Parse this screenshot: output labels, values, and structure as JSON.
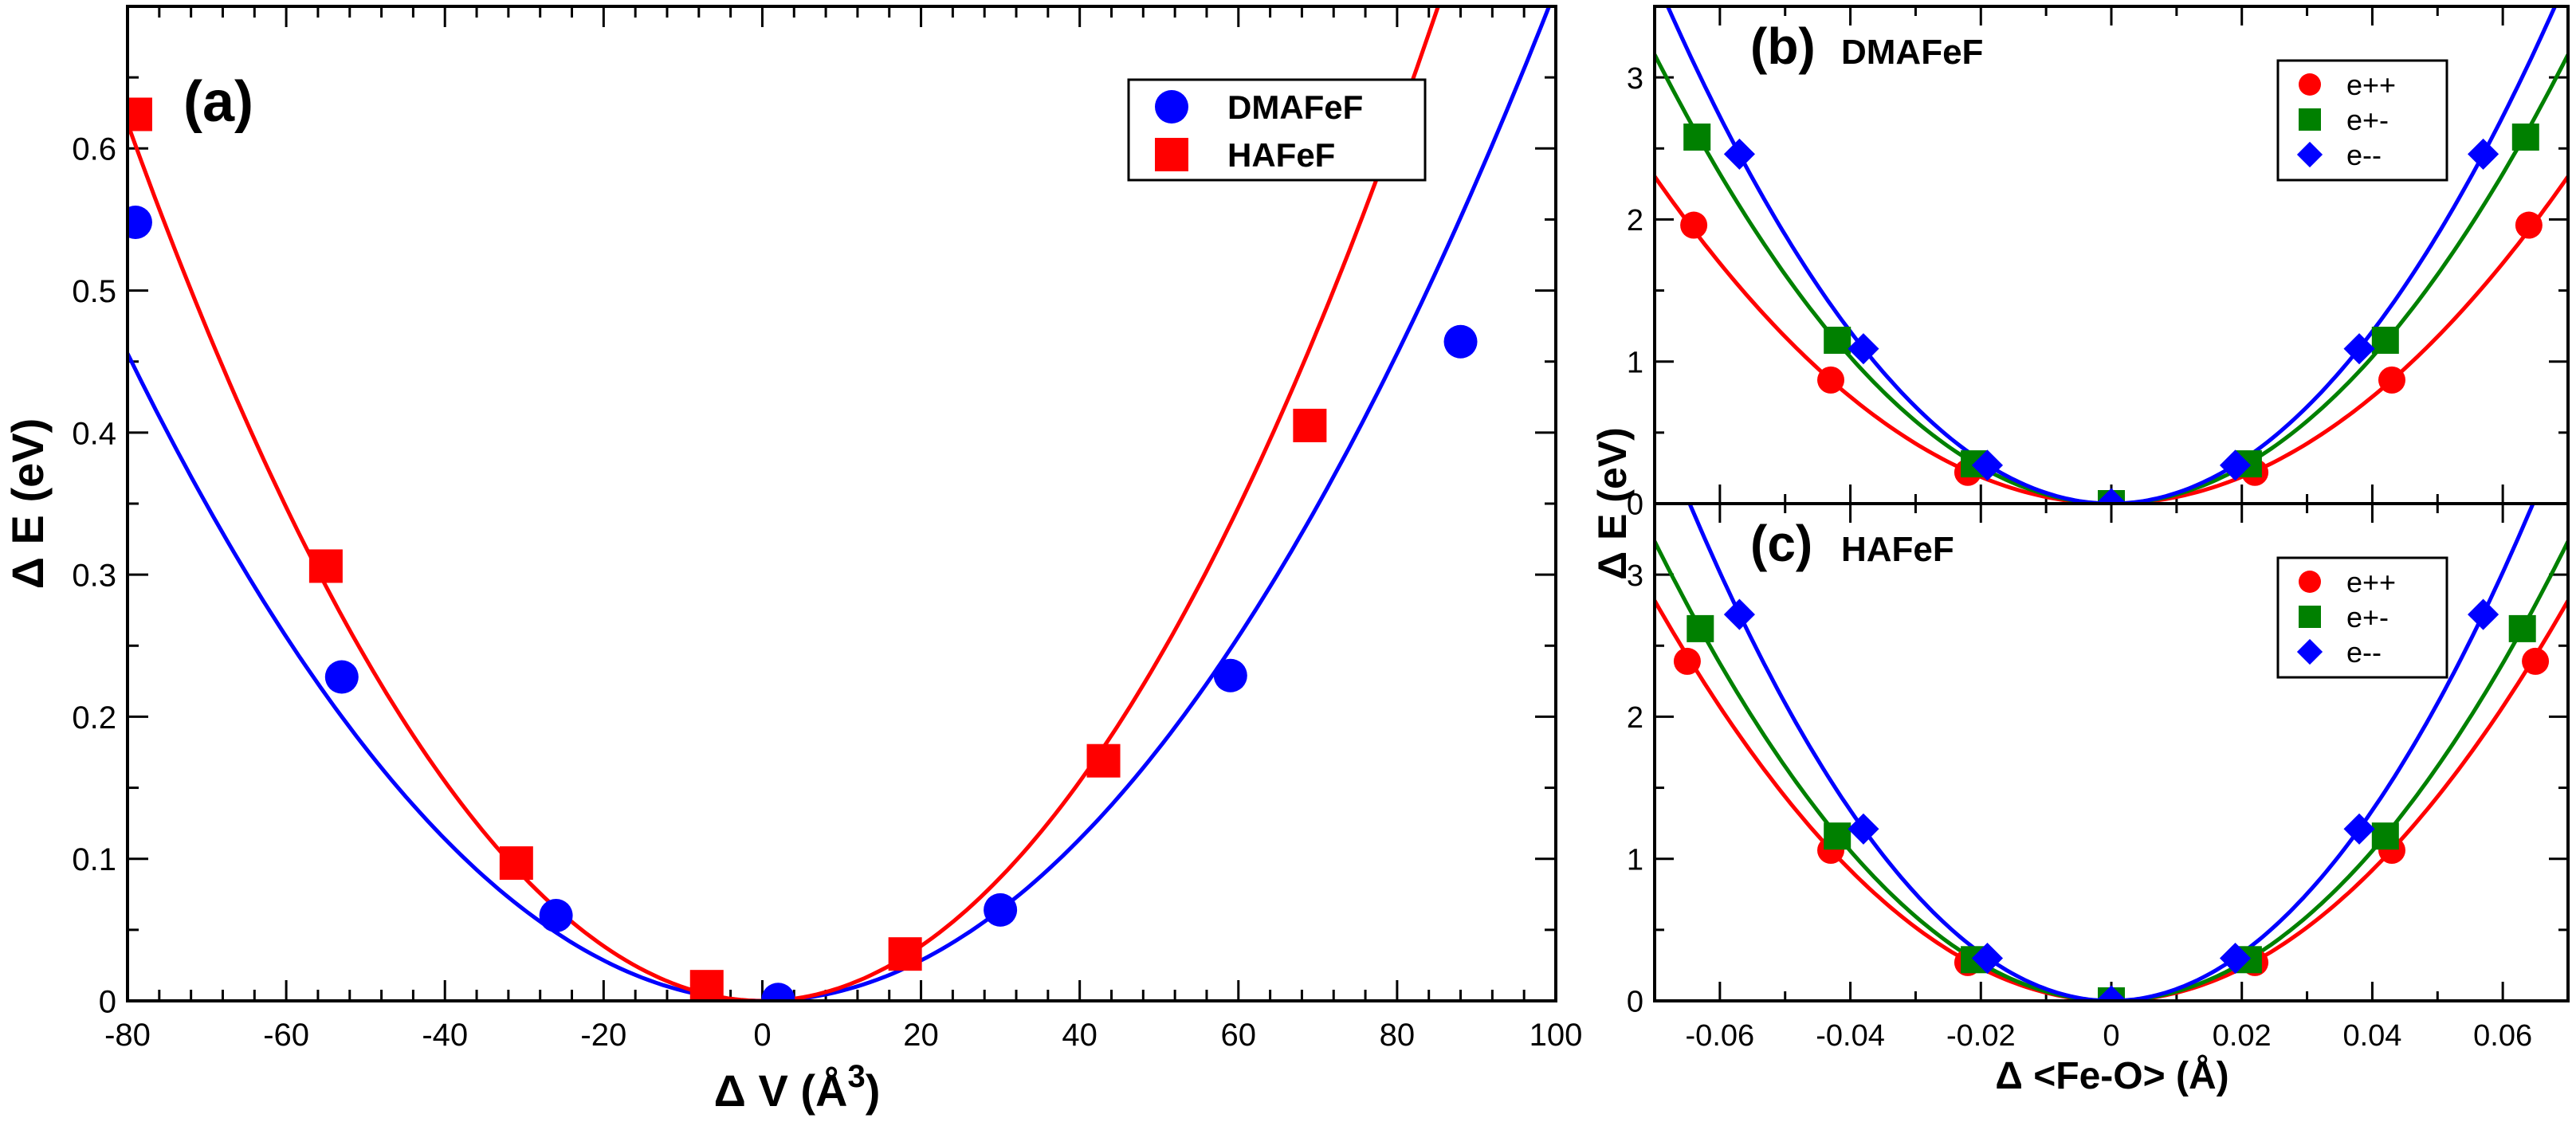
{
  "chart_data": [
    {
      "panel": "(a)",
      "type": "scatter",
      "title": "",
      "xlabel": "Δ V (Å",
      "xlabel_sup": "3",
      "xlabel_close": ")",
      "ylabel": "Δ E (eV)",
      "xlim": [
        -80,
        100
      ],
      "ylim": [
        0,
        0.7
      ],
      "xticks": [
        "-80",
        "-60",
        "-40",
        "-20",
        "0",
        "20",
        "40",
        "60",
        "80",
        "100"
      ],
      "yticks": [
        "0",
        "0.1",
        "0.2",
        "0.3",
        "0.4",
        "0.5",
        "0.6"
      ],
      "legend": "top-right",
      "series": [
        {
          "name": "DMAFeF",
          "color": "#0000ff",
          "marker": "circle",
          "points": [
            [
              -79,
              0.548
            ],
            [
              -53,
              0.228
            ],
            [
              -26,
              0.06
            ],
            [
              2,
              0.001
            ],
            [
              30,
              0.064
            ],
            [
              59,
              0.229
            ],
            [
              88,
              0.464
            ]
          ],
          "fit": [
            7.12e-05,
            0.0
          ],
          "fit_range": [
            -80,
            100
          ]
        },
        {
          "name": "HAFeF",
          "color": "#ff0000",
          "marker": "square",
          "points": [
            [
              -79,
              0.624
            ],
            [
              -55,
              0.306
            ],
            [
              -31,
              0.097
            ],
            [
              -7,
              0.01
            ],
            [
              18,
              0.033
            ],
            [
              43,
              0.169
            ],
            [
              69,
              0.405
            ]
          ],
          "fit": [
            9.65e-05,
            0.0
          ],
          "fit_range": [
            -80,
            92
          ]
        }
      ]
    },
    {
      "panel": "(b)",
      "type": "scatter",
      "title": "DMAFeF",
      "xlim": [
        -0.07,
        0.07
      ],
      "ylim": [
        0,
        3.5
      ],
      "yticks": [
        "0",
        "1",
        "2",
        "3"
      ],
      "legend": "top-right",
      "series": [
        {
          "name": "e++",
          "color": "#ff0000",
          "marker": "circle",
          "points": [
            [
              -0.064,
              1.96
            ],
            [
              -0.043,
              0.87
            ],
            [
              -0.022,
              0.22
            ],
            [
              0,
              0
            ],
            [
              0.022,
              0.22
            ],
            [
              0.043,
              0.87
            ],
            [
              0.064,
              1.96
            ]
          ],
          "fit": 470
        },
        {
          "name": "e+-",
          "color": "#008000",
          "marker": "square",
          "points": [
            [
              -0.0635,
              2.58
            ],
            [
              -0.042,
              1.15
            ],
            [
              -0.021,
              0.28
            ],
            [
              0,
              0
            ],
            [
              0.021,
              0.28
            ],
            [
              0.042,
              1.15
            ],
            [
              0.0635,
              2.58
            ]
          ],
          "fit": 645
        },
        {
          "name": "e--",
          "color": "#0000ff",
          "marker": "diamond",
          "points": [
            [
              -0.057,
              2.46
            ],
            [
              -0.038,
              1.09
            ],
            [
              -0.019,
              0.27
            ],
            [
              0,
              0
            ],
            [
              0.019,
              0.27
            ],
            [
              0.038,
              1.09
            ],
            [
              0.057,
              2.46
            ]
          ],
          "fit": 757
        }
      ]
    },
    {
      "panel": "(c)",
      "type": "scatter",
      "title": "HAFeF",
      "xlabel": "Δ <Fe-O> (Å)",
      "xlim": [
        -0.07,
        0.07
      ],
      "ylim": [
        0,
        3.5
      ],
      "xticks": [
        "-0.06",
        "-0.04",
        "-0.02",
        "0",
        "0.02",
        "0.04",
        "0.06"
      ],
      "yticks": [
        "0",
        "1",
        "2",
        "3"
      ],
      "legend": "top-right",
      "series": [
        {
          "name": "e++",
          "color": "#ff0000",
          "marker": "circle",
          "points": [
            [
              -0.065,
              2.39
            ],
            [
              -0.043,
              1.06
            ],
            [
              -0.022,
              0.27
            ],
            [
              0,
              0
            ],
            [
              0.022,
              0.27
            ],
            [
              0.043,
              1.06
            ],
            [
              0.065,
              2.39
            ]
          ],
          "fit": 575
        },
        {
          "name": "e+-",
          "color": "#008000",
          "marker": "square",
          "points": [
            [
              -0.063,
              2.62
            ],
            [
              -0.042,
              1.16
            ],
            [
              -0.021,
              0.29
            ],
            [
              0,
              0
            ],
            [
              0.021,
              0.29
            ],
            [
              0.042,
              1.16
            ],
            [
              0.063,
              2.62
            ]
          ],
          "fit": 660
        },
        {
          "name": "e--",
          "color": "#0000ff",
          "marker": "diamond",
          "points": [
            [
              -0.057,
              2.72
            ],
            [
              -0.038,
              1.21
            ],
            [
              -0.019,
              0.3
            ],
            [
              0,
              0
            ],
            [
              0.019,
              0.3
            ],
            [
              0.038,
              1.21
            ],
            [
              0.057,
              2.72
            ]
          ],
          "fit": 838
        }
      ]
    }
  ],
  "shared_ylabel_bc": "Δ E (eV)"
}
